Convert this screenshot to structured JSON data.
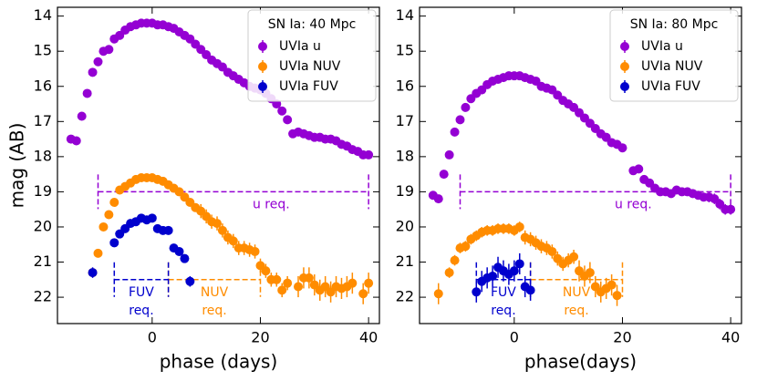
{
  "chart_data": [
    {
      "type": "scatter",
      "legend_title": "SN Ia: 40 Mpc",
      "xlabel": "phase (days)",
      "ylabel": "mag (AB)",
      "xlim": [
        -17.5,
        42
      ],
      "ylim": [
        22.75,
        13.75
      ],
      "xticks": [
        0,
        20,
        40
      ],
      "yticks": [
        14,
        15,
        16,
        17,
        18,
        19,
        20,
        21,
        22
      ],
      "legend": "upper right",
      "series": [
        {
          "name": "UVIa u",
          "color": "#9400d3",
          "x": [
            -15,
            -14,
            -13,
            -12,
            -11,
            -10,
            -9,
            -8,
            -7,
            -6,
            -5,
            -4,
            -3,
            -2,
            -1,
            0,
            1,
            2,
            3,
            4,
            5,
            6,
            7,
            8,
            9,
            10,
            11,
            12,
            13,
            14,
            15,
            16,
            17,
            18,
            19,
            20,
            21,
            22,
            23,
            24,
            25,
            26,
            27,
            28,
            29,
            30,
            31,
            32,
            33,
            34,
            35,
            36,
            37,
            38,
            39,
            40
          ],
          "values": [
            17.5,
            17.55,
            16.85,
            16.2,
            15.6,
            15.3,
            15.0,
            14.95,
            14.65,
            14.55,
            14.4,
            14.3,
            14.25,
            14.2,
            14.2,
            14.2,
            14.25,
            14.25,
            14.3,
            14.35,
            14.45,
            14.55,
            14.65,
            14.8,
            14.95,
            15.1,
            15.25,
            15.35,
            15.45,
            15.6,
            15.7,
            15.8,
            15.9,
            16.0,
            16.05,
            16.1,
            16.2,
            16.35,
            16.5,
            16.7,
            16.95,
            17.35,
            17.3,
            17.35,
            17.4,
            17.45,
            17.45,
            17.5,
            17.5,
            17.55,
            17.65,
            17.7,
            17.8,
            17.85,
            17.95,
            17.95
          ]
        },
        {
          "name": "UVIa NUV",
          "color": "#ff8c00",
          "x": [
            -11,
            -10,
            -9,
            -8,
            -7,
            -6,
            -5,
            -4,
            -3,
            -2,
            -1,
            0,
            1,
            2,
            3,
            4,
            5,
            6,
            7,
            8,
            9,
            10,
            11,
            12,
            13,
            14,
            15,
            16,
            17,
            18,
            19,
            20,
            21,
            22,
            23,
            24,
            25,
            27,
            28,
            29,
            30,
            31,
            32,
            33,
            34,
            35,
            36,
            37,
            39,
            40
          ],
          "values": [
            21.3,
            20.75,
            20.0,
            19.65,
            19.3,
            18.95,
            18.85,
            18.75,
            18.65,
            18.6,
            18.6,
            18.6,
            18.65,
            18.7,
            18.8,
            18.9,
            19.0,
            19.15,
            19.3,
            19.45,
            19.55,
            19.7,
            19.85,
            19.9,
            20.1,
            20.3,
            20.4,
            20.6,
            20.6,
            20.65,
            20.7,
            21.1,
            21.25,
            21.5,
            21.5,
            21.8,
            21.6,
            21.7,
            21.45,
            21.45,
            21.65,
            21.8,
            21.7,
            21.85,
            21.7,
            21.75,
            21.7,
            21.6,
            21.9,
            21.6
          ],
          "errors": [
            0.1,
            0.1,
            0.1,
            0.1,
            0.1,
            0.1,
            0.1,
            0.1,
            0.1,
            0.1,
            0.1,
            0.1,
            0.1,
            0.1,
            0.1,
            0.1,
            0.1,
            0.1,
            0.1,
            0.1,
            0.2,
            0.2,
            0.2,
            0.2,
            0.2,
            0.2,
            0.2,
            0.2,
            0.2,
            0.2,
            0.2,
            0.2,
            0.2,
            0.2,
            0.2,
            0.2,
            0.2,
            0.3,
            0.3,
            0.3,
            0.3,
            0.3,
            0.3,
            0.3,
            0.3,
            0.3,
            0.3,
            0.3,
            0.3,
            0.3
          ]
        },
        {
          "name": "UVIa FUV",
          "color": "#0000cd",
          "x": [
            -11,
            -7,
            -6,
            -5,
            -4,
            -3,
            -2,
            -1,
            0,
            1,
            2,
            3,
            4,
            5,
            6,
            7
          ],
          "values": [
            21.3,
            20.45,
            20.2,
            20.05,
            19.9,
            19.85,
            19.75,
            19.8,
            19.75,
            20.05,
            20.1,
            20.1,
            20.6,
            20.7,
            20.9,
            21.55
          ],
          "errors": [
            0.15,
            0.1,
            0.1,
            0.1,
            0.1,
            0.1,
            0.1,
            0.1,
            0.1,
            0.1,
            0.1,
            0.1,
            0.1,
            0.1,
            0.1,
            0.15
          ]
        }
      ],
      "requirements": [
        {
          "label": [
            "u req."
          ],
          "value": 19,
          "x": [
            -10,
            40
          ],
          "color": "#9400d3"
        },
        {
          "label": [
            "NUV",
            "req."
          ],
          "value": 21.5,
          "x": [
            3,
            20
          ],
          "color": "#ff8c00"
        },
        {
          "label": [
            "FUV",
            "req."
          ],
          "value": 21.5,
          "x": [
            -7,
            3
          ],
          "color": "#0000cd"
        }
      ]
    },
    {
      "type": "scatter",
      "legend_title": "SN Ia: 80 Mpc",
      "xlabel": "phase(days)",
      "xlim": [
        -17.5,
        42
      ],
      "ylim": [
        22.75,
        13.75
      ],
      "xticks": [
        0,
        20,
        40
      ],
      "yticks": [
        14,
        15,
        16,
        17,
        18,
        19,
        20,
        21,
        22
      ],
      "legend": "upper right",
      "series": [
        {
          "name": "UVIa u",
          "color": "#9400d3",
          "x": [
            -15,
            -14,
            -13,
            -12,
            -11,
            -10,
            -9,
            -8,
            -7,
            -6,
            -5,
            -4,
            -3,
            -2,
            -1,
            0,
            1,
            2,
            3,
            4,
            5,
            6,
            7,
            8,
            9,
            10,
            11,
            12,
            13,
            14,
            15,
            16,
            17,
            18,
            19,
            20,
            22,
            23,
            24,
            25,
            26,
            27,
            28,
            29,
            30,
            31,
            32,
            33,
            34,
            35,
            36,
            37,
            38,
            39,
            40
          ],
          "values": [
            19.1,
            19.2,
            18.5,
            17.95,
            17.3,
            16.95,
            16.6,
            16.35,
            16.2,
            16.1,
            15.95,
            15.85,
            15.8,
            15.75,
            15.7,
            15.7,
            15.7,
            15.75,
            15.8,
            15.85,
            16.0,
            16.05,
            16.1,
            16.25,
            16.4,
            16.5,
            16.6,
            16.75,
            16.9,
            17.05,
            17.2,
            17.35,
            17.45,
            17.6,
            17.65,
            17.75,
            18.4,
            18.35,
            18.65,
            18.75,
            18.9,
            19.0,
            19.0,
            19.05,
            18.95,
            19.0,
            19.0,
            19.05,
            19.1,
            19.15,
            19.15,
            19.2,
            19.35,
            19.5,
            19.5
          ],
          "errors": [
            0.05,
            0.05,
            0.05,
            0.05,
            0.05,
            0.05,
            0.05,
            0.05,
            0.05,
            0.05,
            0.05,
            0.05,
            0.05,
            0.05,
            0.05,
            0.05,
            0.05,
            0.05,
            0.05,
            0.05,
            0.05,
            0.05,
            0.05,
            0.05,
            0.05,
            0.05,
            0.05,
            0.05,
            0.05,
            0.05,
            0.05,
            0.05,
            0.05,
            0.05,
            0.05,
            0.05,
            0.1,
            0.1,
            0.1,
            0.1,
            0.1,
            0.1,
            0.1,
            0.1,
            0.1,
            0.1,
            0.1,
            0.1,
            0.1,
            0.1,
            0.15,
            0.15,
            0.15,
            0.15,
            0.15
          ]
        },
        {
          "name": "UVIa NUV",
          "color": "#ff8c00",
          "x": [
            -14,
            -12,
            -11,
            -10,
            -9,
            -8,
            -7,
            -6,
            -5,
            -4,
            -3,
            -2,
            -1,
            0,
            1,
            2,
            3,
            4,
            5,
            6,
            7,
            8,
            9,
            10,
            11,
            12,
            13,
            14,
            15,
            16,
            17,
            18,
            19
          ],
          "values": [
            21.9,
            21.3,
            20.95,
            20.6,
            20.55,
            20.35,
            20.25,
            20.15,
            20.1,
            20.1,
            20.05,
            20.05,
            20.05,
            20.1,
            20.0,
            20.3,
            20.35,
            20.45,
            20.55,
            20.6,
            20.7,
            20.9,
            21.05,
            20.95,
            20.85,
            21.25,
            21.4,
            21.3,
            21.7,
            21.85,
            21.75,
            21.65,
            21.95
          ],
          "errors": [
            0.3,
            0.15,
            0.15,
            0.15,
            0.15,
            0.15,
            0.15,
            0.15,
            0.15,
            0.15,
            0.15,
            0.15,
            0.15,
            0.15,
            0.15,
            0.2,
            0.2,
            0.2,
            0.2,
            0.2,
            0.2,
            0.2,
            0.2,
            0.2,
            0.2,
            0.3,
            0.3,
            0.3,
            0.3,
            0.3,
            0.3,
            0.3,
            0.3
          ]
        },
        {
          "name": "UVIa FUV",
          "color": "#0000cd",
          "x": [
            -7,
            -6,
            -5,
            -4,
            -3,
            -2,
            -1,
            0,
            1,
            2,
            3
          ],
          "values": [
            21.85,
            21.55,
            21.45,
            21.4,
            21.15,
            21.25,
            21.35,
            21.25,
            21.05,
            21.7,
            21.8
          ],
          "errors": [
            0.3,
            0.3,
            0.3,
            0.3,
            0.3,
            0.3,
            0.3,
            0.3,
            0.3,
            0.3,
            0.3
          ]
        }
      ],
      "requirements": [
        {
          "label": [
            "u req."
          ],
          "value": 19,
          "x": [
            -10,
            40
          ],
          "color": "#9400d3"
        },
        {
          "label": [
            "NUV",
            "req."
          ],
          "value": 21.5,
          "x": [
            3,
            20
          ],
          "color": "#ff8c00"
        },
        {
          "label": [
            "FUV",
            "req."
          ],
          "value": 21.5,
          "x": [
            -7,
            3
          ],
          "color": "#0000cd"
        }
      ]
    }
  ]
}
